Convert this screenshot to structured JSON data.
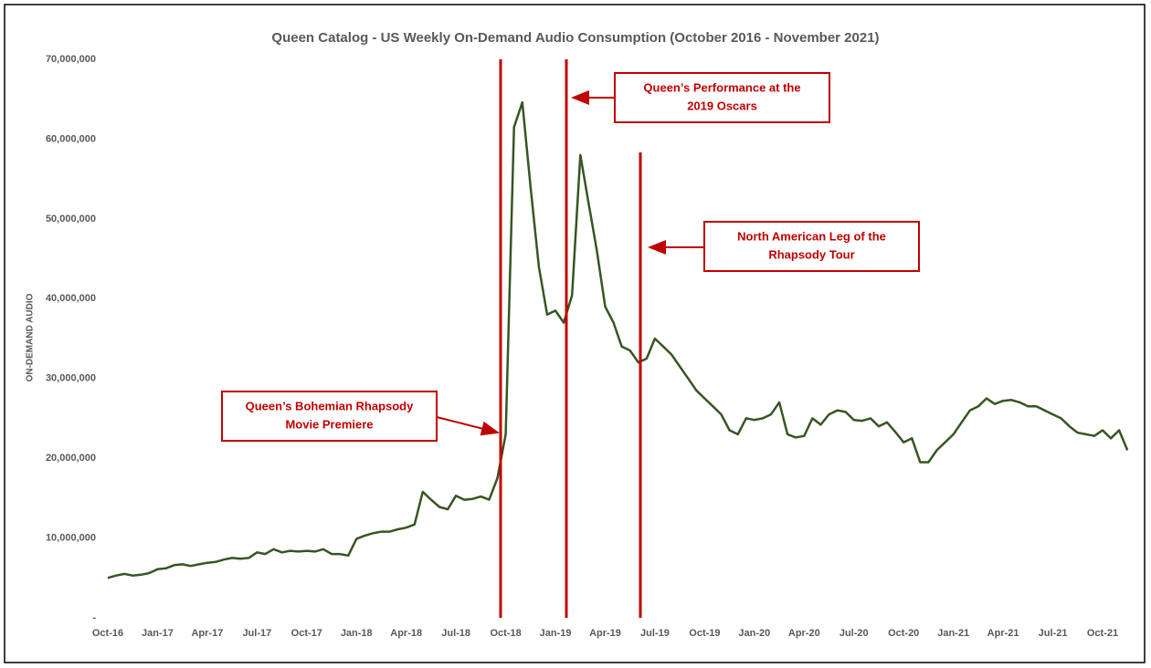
{
  "chart_data": {
    "type": "line",
    "title": "Queen Catalog - US Weekly On-Demand Audio Consumption (October 2016 - November 2021)",
    "y_label": "ON-DEMAND AUDIO",
    "color": "#375623",
    "categories": [
      "Oct-16",
      null,
      null,
      null,
      null,
      null,
      "Jan-17",
      null,
      null,
      null,
      null,
      null,
      "Apr-17",
      null,
      null,
      null,
      null,
      null,
      "Jul-17",
      null,
      null,
      null,
      null,
      null,
      "Oct-17",
      null,
      null,
      null,
      null,
      null,
      "Jan-18",
      null,
      null,
      null,
      null,
      null,
      "Apr-18",
      null,
      null,
      null,
      null,
      null,
      "Jul-18",
      null,
      null,
      null,
      null,
      null,
      "Oct-18",
      null,
      null,
      null,
      null,
      null,
      "Jan-19",
      null,
      null,
      null,
      null,
      null,
      "Apr-19",
      null,
      null,
      null,
      null,
      null,
      "Jul-19",
      null,
      null,
      null,
      null,
      null,
      "Oct-19",
      null,
      null,
      null,
      null,
      null,
      "Jan-20",
      null,
      null,
      null,
      null,
      null,
      "Apr-20",
      null,
      null,
      null,
      null,
      null,
      "Jul-20",
      null,
      null,
      null,
      null,
      null,
      "Oct-20",
      null,
      null,
      null,
      null,
      null,
      "Jan-21",
      null,
      null,
      null,
      null,
      null,
      "Apr-21",
      null,
      null,
      null,
      null,
      null,
      "Jul-21",
      null,
      null,
      null,
      null,
      null,
      "Oct-21",
      null,
      null,
      null
    ],
    "values": [
      5000000.0,
      5300000.0,
      5500000.0,
      5300000.0,
      5400000.0,
      5600000.0,
      6100000.0,
      6200000.0,
      6600000.0,
      6700000.0,
      6500000.0,
      6700000.0,
      6900000.0,
      7000000.0,
      7300000.0,
      7500000.0,
      7400000.0,
      7500000.0,
      8200000.0,
      8000000.0,
      8600000.0,
      8200000.0,
      8400000.0,
      8300000.0,
      8400000.0,
      8300000.0,
      8600000.0,
      8000000.0,
      8000000.0,
      7800000.0,
      9900000.0,
      10300000.0,
      10600000.0,
      10800000.0,
      10800000.0,
      11100000.0,
      11300000.0,
      11700000.0,
      15800000.0,
      14800000.0,
      13900000.0,
      13600000.0,
      15300000.0,
      14800000.0,
      14900000.0,
      15200000.0,
      14800000.0,
      17500000.0,
      23000000.0,
      61500000.0,
      64600000.0,
      54000000.0,
      44000000.0,
      38000000.0,
      38500000.0,
      37000000.0,
      40400000.0,
      58000000.0,
      52000000.0,
      46000000.0,
      39000000.0,
      37000000.0,
      34000000.0,
      33500000.0,
      32000000.0,
      32500000.0,
      35000000.0,
      34000000.0,
      33000000.0,
      31500000.0,
      30000000.0,
      28500000.0,
      27500000.0,
      26500000.0,
      25500000.0,
      23500000.0,
      23000000.0,
      25000000.0,
      24800000.0,
      25000000.0,
      25500000.0,
      27000000.0,
      23000000.0,
      22600000.0,
      22800000.0,
      25000000.0,
      24200000.0,
      25500000.0,
      26000000.0,
      25800000.0,
      24800000.0,
      24700000.0,
      25000000.0,
      24000000.0,
      24500000.0,
      23300000.0,
      22000000.0,
      22500000.0,
      19500000.0,
      19500000.0,
      21000000.0,
      22000000.0,
      23000000.0,
      24500000.0,
      26000000.0,
      26500000.0,
      27500000.0,
      26800000.0,
      27200000.0,
      27300000.0,
      27000000.0,
      26500000.0,
      26500000.0,
      26000000.0,
      25500000.0,
      25000000.0,
      24000000.0,
      23200000.0,
      23000000.0,
      22800000.0,
      23500000.0,
      22500000.0,
      23500000.0,
      21000000.0
    ],
    "ylim": [
      0,
      70000000
    ],
    "yticks": [
      {
        "value": 0,
        "label": "-"
      },
      {
        "value": 10000000,
        "label": "10,000,000"
      },
      {
        "value": 20000000,
        "label": "20,000,000"
      },
      {
        "value": 30000000,
        "label": "30,000,000"
      },
      {
        "value": 40000000,
        "label": "40,000,000"
      },
      {
        "value": 50000000,
        "label": "50,000,000"
      },
      {
        "value": 60000000,
        "label": "60,000,000"
      },
      {
        "value": 70000000,
        "label": "70,000,000"
      }
    ],
    "grid": false,
    "annotations": [
      {
        "lines": [
          "Queen’s Bohemian Rhapsody",
          "Movie Premiere"
        ]
      },
      {
        "lines": [
          "Queen’s Performance at the",
          "2019 Oscars"
        ]
      },
      {
        "lines": [
          "North American Leg of the",
          "Rhapsody Tour"
        ]
      }
    ]
  }
}
